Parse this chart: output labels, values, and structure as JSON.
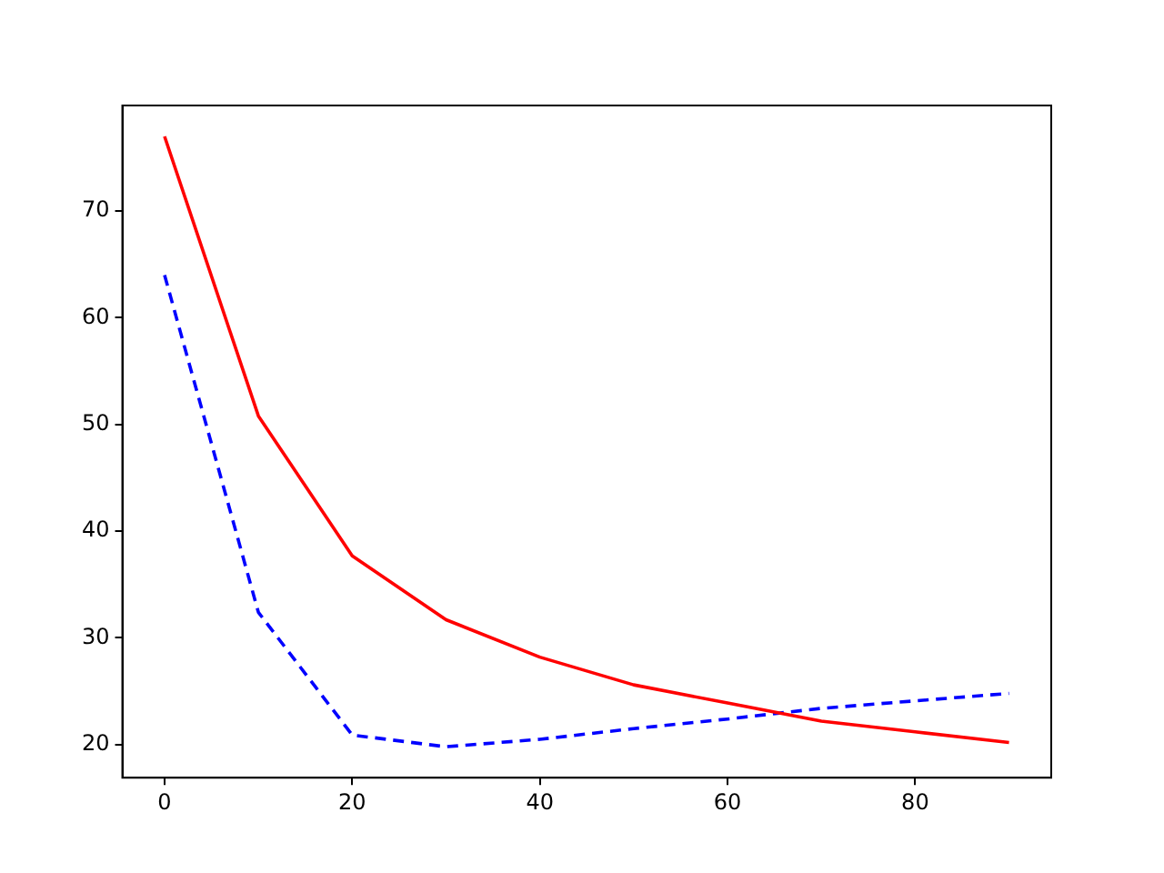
{
  "chart_data": {
    "type": "line",
    "x": [
      0,
      10,
      20,
      30,
      40,
      50,
      60,
      70,
      80,
      90
    ],
    "series": [
      {
        "color": "#ff0000",
        "line_style": "solid",
        "values": [
          77,
          50.8,
          37.7,
          31.7,
          28.2,
          25.6,
          23.9,
          22.2,
          21.2,
          20.2
        ]
      },
      {
        "color": "#0000ff",
        "line_style": "dashed",
        "values": [
          64,
          32.4,
          20.9,
          19.8,
          20.5,
          21.5,
          22.4,
          23.4,
          24.1,
          24.8
        ]
      }
    ],
    "xlim": [
      -4.5,
      94.5
    ],
    "xticks": [
      0,
      20,
      40,
      60,
      80
    ],
    "ylim": [
      16.9,
      79.9
    ],
    "yticks": [
      20,
      30,
      40,
      50,
      60,
      70
    ],
    "grid": false,
    "legend": false,
    "marker": "none"
  }
}
